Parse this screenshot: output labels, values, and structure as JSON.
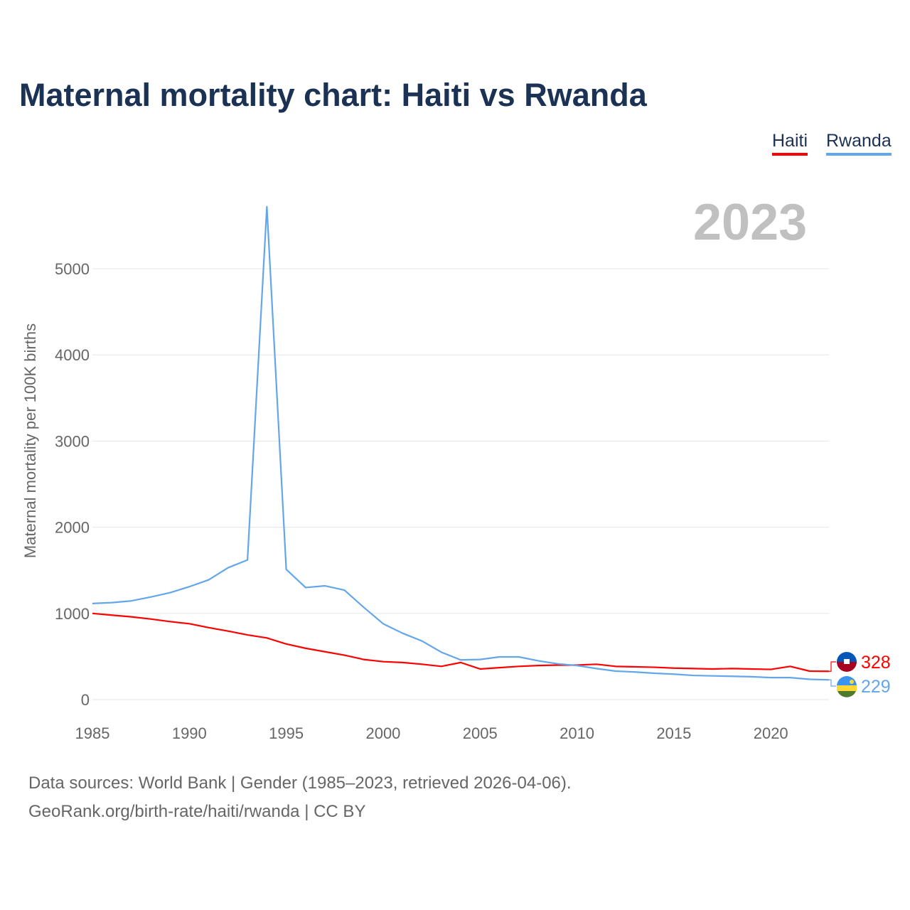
{
  "title": "Maternal mortality chart: Haiti vs Rwanda",
  "year_label": "2023",
  "footer": {
    "line1": "Data sources: World Bank | Gender (1985–2023, retrieved 2026-04-06).",
    "line2": "GeoRank.org/birth-rate/haiti/rwanda | CC BY"
  },
  "chart_data": {
    "type": "line",
    "title": "Maternal mortality chart: Haiti vs Rwanda",
    "xlabel": "",
    "ylabel": "Maternal mortality per 100K births",
    "xlim": [
      1985,
      2023
    ],
    "ylim": [
      0,
      5000
    ],
    "x_ticks": [
      "1985",
      "1990",
      "1995",
      "2000",
      "2005",
      "2010",
      "2015",
      "2020"
    ],
    "y_ticks": [
      "0",
      "1000",
      "2000",
      "3000",
      "4000",
      "5000"
    ],
    "grid": true,
    "legend_position": "top-right",
    "x": [
      1985,
      1986,
      1987,
      1988,
      1989,
      1990,
      1991,
      1992,
      1993,
      1994,
      1995,
      1996,
      1997,
      1998,
      1999,
      2000,
      2001,
      2002,
      2003,
      2004,
      2005,
      2006,
      2007,
      2008,
      2009,
      2010,
      2011,
      2012,
      2013,
      2014,
      2015,
      2016,
      2017,
      2018,
      2019,
      2020,
      2021,
      2022,
      2023
    ],
    "series": [
      {
        "name": "Haiti",
        "color": "#ff0000",
        "end_label": "328",
        "values": [
          1000,
          980,
          960,
          935,
          905,
          880,
          835,
          795,
          750,
          715,
          645,
          595,
          555,
          515,
          465,
          440,
          430,
          410,
          385,
          430,
          355,
          370,
          385,
          395,
          400,
          400,
          410,
          385,
          380,
          375,
          365,
          360,
          355,
          360,
          355,
          350,
          385,
          330,
          328
        ]
      },
      {
        "name": "Rwanda",
        "color": "#64a6ea",
        "end_label": "229",
        "values": [
          1115,
          1125,
          1145,
          1190,
          1240,
          1310,
          1390,
          1530,
          1620,
          5720,
          1510,
          1300,
          1320,
          1270,
          1070,
          880,
          770,
          680,
          550,
          460,
          465,
          495,
          495,
          450,
          415,
          395,
          360,
          330,
          320,
          305,
          295,
          280,
          275,
          270,
          265,
          255,
          255,
          235,
          229
        ]
      }
    ]
  }
}
